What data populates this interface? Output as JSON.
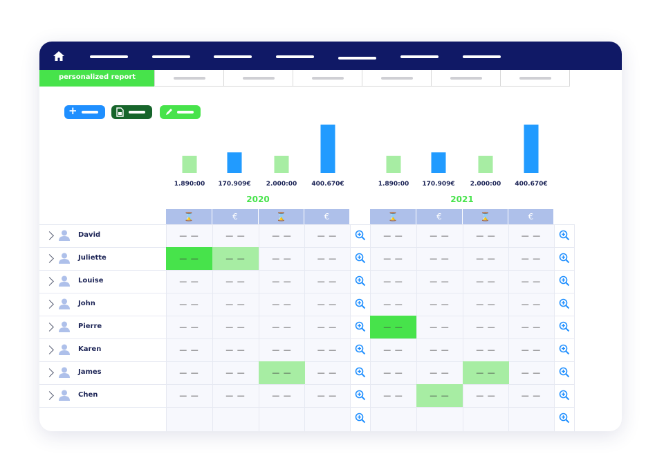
{
  "nav": {
    "home_icon": "home-icon",
    "items": [
      "",
      "",
      "",
      "",
      "",
      "",
      ""
    ]
  },
  "tabs": {
    "active_label": "personalized report"
  },
  "toolbar": {
    "add_icon": "+",
    "colors": {
      "add": "#1f8fff",
      "excel": "#17652b",
      "edit": "#47e34b"
    }
  },
  "chart_data": [
    {
      "type": "bar",
      "group": "2020",
      "categories": [
        "⌛",
        "€",
        "⌛",
        "€"
      ],
      "values": [
        1890,
        170909,
        2000,
        400670
      ],
      "value_labels": [
        "1.890:00",
        "170.909€",
        "2.000:00",
        "400.670€"
      ],
      "bar_colors": [
        "#a7eda3",
        "#219bff",
        "#a7eda3",
        "#219bff"
      ]
    },
    {
      "type": "bar",
      "group": "2021",
      "categories": [
        "⌛",
        "€",
        "⌛",
        "€"
      ],
      "values": [
        1890,
        170909,
        2000,
        400670
      ],
      "value_labels": [
        "1.890:00",
        "170.909€",
        "2.000:00",
        "400.670€"
      ],
      "bar_colors": [
        "#a7eda3",
        "#219bff",
        "#a7eda3",
        "#219bff"
      ]
    }
  ],
  "years": [
    "2020",
    "2021"
  ],
  "column_icons": [
    "⌛",
    "€",
    "⌛",
    "€"
  ],
  "cell_placeholder": "— —",
  "rows": [
    {
      "name": "David",
      "highlights": [
        null,
        null,
        null,
        null,
        null,
        null,
        null,
        null
      ]
    },
    {
      "name": "Juliette",
      "highlights": [
        "strong",
        "light",
        null,
        null,
        null,
        null,
        null,
        null
      ]
    },
    {
      "name": "Louise",
      "highlights": [
        null,
        null,
        null,
        null,
        null,
        null,
        null,
        null
      ]
    },
    {
      "name": "John",
      "highlights": [
        null,
        null,
        null,
        null,
        null,
        null,
        null,
        null
      ]
    },
    {
      "name": "Pierre",
      "highlights": [
        null,
        null,
        null,
        null,
        "strong",
        null,
        null,
        null
      ]
    },
    {
      "name": "Karen",
      "highlights": [
        null,
        null,
        null,
        null,
        null,
        null,
        null,
        null
      ]
    },
    {
      "name": "James",
      "highlights": [
        null,
        null,
        "light",
        null,
        null,
        null,
        "light",
        null
      ]
    },
    {
      "name": "Chen",
      "highlights": [
        null,
        null,
        null,
        null,
        null,
        "light",
        null,
        null
      ]
    }
  ],
  "colors": {
    "navy": "#101966",
    "accent_green": "#47e34b",
    "header_blue": "#aec0ea",
    "zoom_blue": "#1f8fff"
  }
}
